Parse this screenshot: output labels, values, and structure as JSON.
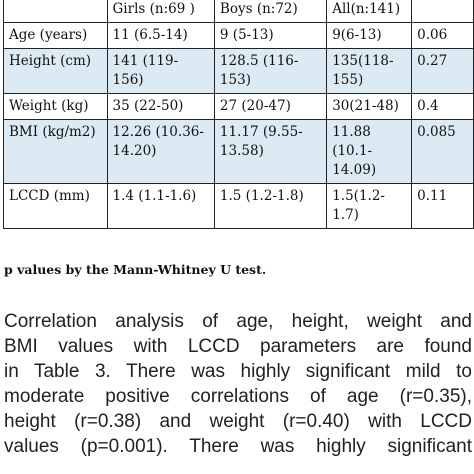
{
  "table": {
    "header": [
      "",
      "Girls (n:69 )",
      "Boys (n:72)",
      "All(n:141)",
      ""
    ],
    "rows": [
      {
        "label": "Age (years)",
        "girls": "11 (6.5-14)",
        "boys": "9 (5-13)",
        "all": "9(6-13)",
        "p": "0.06"
      },
      {
        "label": "Height (cm)",
        "girls": " 141 (119-156)",
        "boys": "128.5 (116-153)",
        "all": "135(118-155)",
        "p": "0.27"
      },
      {
        "label": "Weight (kg)",
        "girls": "35 (22-50)",
        "boys": "27 (20-47)",
        "all": "30(21-48)",
        "p": "0.4"
      },
      {
        "label": "BMI (kg/m2)",
        "girls": "12.26 (10.36-14.20)",
        "boys": "11.17 (9.55-13.58)",
        "all": "11.88 (10.1-14.09)",
        "p": "0.085"
      },
      {
        "label": "LCCD (mm)",
        "girls": "1.4 (1.1-1.6)",
        "boys": "1.5 (1.2-1.8)",
        "all": "1.5(1.2-1.7)",
        "p": "0.11"
      }
    ]
  },
  "footnote": "p values by the Mann-Whitney U test.",
  "paragraph_lines": [
    "Correlation analysis of age, height, weight and",
    "BMI values with LCCD parameters are found",
    "in Table 3. There was highly significant mild to",
    "moderate positive correlations of age (r=0.35),",
    "height (r=0.38) and weight (r=0.40) with LCCD",
    "values (p=0.001). There was highly significant"
  ]
}
